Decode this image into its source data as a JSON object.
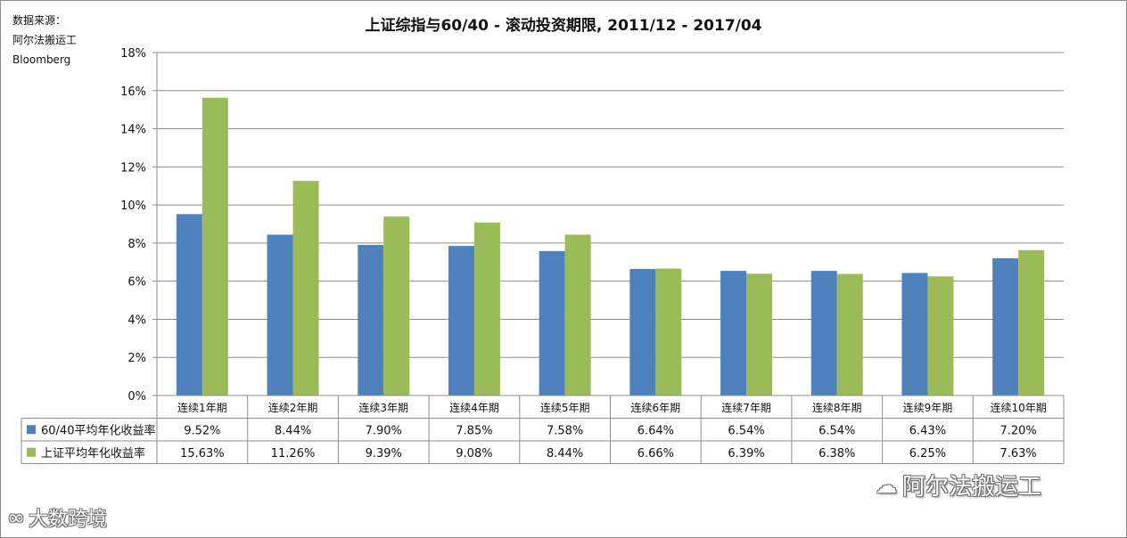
{
  "source_lines": [
    "数据来源：",
    "阿尔法搬运工",
    "Bloomberg"
  ],
  "chart_data": {
    "type": "bar",
    "title": "上证综指与60/40 - 滚动投资期限, 2011/12 - 2017/04",
    "categories": [
      "连续1年期",
      "连续2年期",
      "连续3年期",
      "连续4年期",
      "连续5年期",
      "连续6年期",
      "连续7年期",
      "连续8年期",
      "连续9年期",
      "连续10年期"
    ],
    "series": [
      {
        "name": "60/40平均年化收益率",
        "color": "#4f81bd",
        "values": [
          9.52,
          8.44,
          7.9,
          7.85,
          7.58,
          6.64,
          6.54,
          6.54,
          6.43,
          7.2
        ],
        "labels": [
          "9.52%",
          "8.44%",
          "7.90%",
          "7.85%",
          "7.58%",
          "6.64%",
          "6.54%",
          "6.54%",
          "6.43%",
          "7.20%"
        ]
      },
      {
        "name": "上证平均年化收益率",
        "color": "#9bbb59",
        "values": [
          15.63,
          11.26,
          9.39,
          9.08,
          8.44,
          6.66,
          6.39,
          6.38,
          6.25,
          7.63
        ],
        "labels": [
          "15.63%",
          "11.26%",
          "9.39%",
          "9.08%",
          "8.44%",
          "6.66%",
          "6.39%",
          "6.38%",
          "6.25%",
          "7.63%"
        ]
      }
    ],
    "ylim": [
      0,
      18
    ],
    "yticks": [
      0,
      2,
      4,
      6,
      8,
      10,
      12,
      14,
      16,
      18
    ],
    "ytick_labels": [
      "0%",
      "2%",
      "4%",
      "6%",
      "8%",
      "10%",
      "12%",
      "14%",
      "16%",
      "18%"
    ],
    "grid": true,
    "legend": "data-table"
  },
  "watermarks": {
    "right_text": "阿尔法搬运工",
    "right_icon": "wechat-icon",
    "left_text": "大数跨境",
    "left_icon": "logo-icon"
  }
}
